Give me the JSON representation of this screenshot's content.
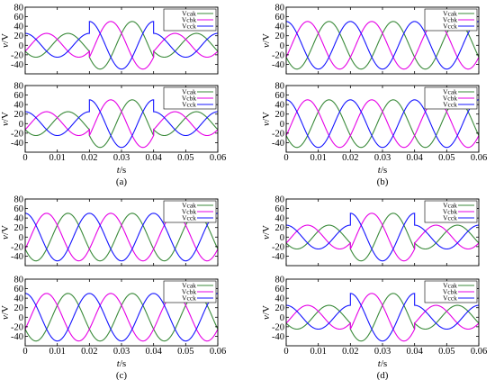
{
  "chart_data": [
    {
      "panel": "(a)",
      "caption": "(a)",
      "xlabel": "t/s",
      "ylabel": "v/V",
      "xlim": [
        0,
        0.06
      ],
      "xticks": [
        "0",
        "0.01",
        "0.02",
        "0.03",
        "0.04",
        "0.05",
        "0.06"
      ],
      "subplots": [
        {
          "type": "line",
          "ylim": [
            -60,
            80
          ],
          "yticks": [
            "-40",
            "-20",
            "0",
            "20",
            "40",
            "60",
            "80"
          ],
          "legend": {
            "position": "top-right",
            "entries": [
              "Vcak",
              "Vcbk",
              "Vcck"
            ]
          },
          "segments": [
            {
              "x_start": 0.0,
              "x_end": 0.02,
              "amplitude": 25,
              "phases_deg": [
                -150,
                -30,
                90
              ]
            },
            {
              "x_start": 0.02,
              "x_end": 0.04,
              "amplitude": 50,
              "phases_deg": [
                -150,
                -30,
                90
              ]
            },
            {
              "x_start": 0.04,
              "x_end": 0.06,
              "amplitude": 25,
              "phases_deg": [
                -150,
                -30,
                90
              ]
            }
          ]
        },
        {
          "type": "line",
          "ylim": [
            -60,
            80
          ],
          "yticks": [
            "-40",
            "-20",
            "0",
            "20",
            "40",
            "60",
            "80"
          ],
          "legend": {
            "position": "top-right",
            "entries": [
              "Vcak",
              "Vcbk",
              "Vcck"
            ]
          },
          "segments": [
            {
              "x_start": 0.0,
              "x_end": 0.02,
              "amplitude": 25,
              "phases_deg": [
                -150,
                -30,
                90
              ]
            },
            {
              "x_start": 0.02,
              "x_end": 0.04,
              "amplitude": 50,
              "phases_deg": [
                -150,
                -30,
                90
              ]
            },
            {
              "x_start": 0.04,
              "x_end": 0.06,
              "amplitude": 25,
              "phases_deg": [
                -150,
                -30,
                90
              ]
            }
          ]
        }
      ]
    },
    {
      "panel": "(b)",
      "caption": "(b)",
      "xlabel": "t/s",
      "ylabel": "v/V",
      "xlim": [
        0,
        0.06
      ],
      "xticks": [
        "0",
        "0.01",
        "0.02",
        "0.03",
        "0.04",
        "0.05",
        "0.06"
      ],
      "subplots": [
        {
          "type": "line",
          "ylim": [
            -60,
            80
          ],
          "yticks": [
            "-40",
            "-20",
            "0",
            "20",
            "40",
            "60",
            "80"
          ],
          "legend": {
            "position": "top-right",
            "entries": [
              "Vcak",
              "Vcbk",
              "Vcck"
            ]
          },
          "segments": [
            {
              "x_start": 0.0,
              "x_end": 0.02,
              "amplitude": 50,
              "phases_deg": [
                -150,
                -30,
                90
              ]
            },
            {
              "x_start": 0.02,
              "x_end": 0.04,
              "amplitude": 50,
              "phases_deg": [
                -150,
                -30,
                90
              ]
            },
            {
              "x_start": 0.04,
              "x_end": 0.06,
              "amplitude": 50,
              "phases_deg": [
                -150,
                -30,
                90
              ]
            }
          ]
        },
        {
          "type": "line",
          "ylim": [
            -60,
            80
          ],
          "yticks": [
            "-40",
            "-20",
            "0",
            "20",
            "40",
            "60",
            "80"
          ],
          "legend": {
            "position": "top-right",
            "entries": [
              "Vcak",
              "Vcbk",
              "Vcck"
            ]
          },
          "segments": [
            {
              "x_start": 0.0,
              "x_end": 0.02,
              "amplitude": 50,
              "phases_deg": [
                -150,
                -30,
                90
              ]
            },
            {
              "x_start": 0.02,
              "x_end": 0.04,
              "amplitude": 50,
              "phases_deg": [
                -150,
                -30,
                90
              ]
            },
            {
              "x_start": 0.04,
              "x_end": 0.06,
              "amplitude": 50,
              "phases_deg": [
                -150,
                -30,
                90
              ]
            }
          ]
        }
      ]
    },
    {
      "panel": "(c)",
      "caption": "(c)",
      "xlabel": "t/s",
      "ylabel": "v/V",
      "xlim": [
        0,
        0.06
      ],
      "xticks": [
        "0",
        "0.01",
        "0.02",
        "0.03",
        "0.04",
        "0.05",
        "0.06"
      ],
      "subplots": [
        {
          "type": "line",
          "ylim": [
            -60,
            80
          ],
          "yticks": [
            "-40",
            "-20",
            "0",
            "20",
            "40",
            "60",
            "80"
          ],
          "legend": {
            "position": "top-right",
            "entries": [
              "Vcak",
              "Vcbk",
              "Vcck"
            ]
          },
          "segments": [
            {
              "x_start": 0.0,
              "x_end": 0.06,
              "amplitude": 50,
              "phases_deg": [
                -150,
                -30,
                90
              ]
            }
          ]
        },
        {
          "type": "line",
          "ylim": [
            -60,
            80
          ],
          "yticks": [
            "-40",
            "-20",
            "0",
            "20",
            "40",
            "60",
            "80"
          ],
          "legend": {
            "position": "top-right",
            "entries": [
              "Vcak",
              "Vcbk",
              "Vcck"
            ]
          },
          "segments": [
            {
              "x_start": 0.0,
              "x_end": 0.06,
              "amplitude": 50,
              "phases_deg": [
                -150,
                -30,
                90
              ]
            }
          ]
        }
      ]
    },
    {
      "panel": "(d)",
      "caption": "(d)",
      "xlabel": "t/s",
      "ylabel": "v/V",
      "xlim": [
        0,
        0.06
      ],
      "xticks": [
        "0",
        "0.01",
        "0.02",
        "0.03",
        "0.04",
        "0.05",
        "0.06"
      ],
      "subplots": [
        {
          "type": "line",
          "ylim": [
            -60,
            80
          ],
          "yticks": [
            "-40",
            "-20",
            "0",
            "20",
            "40",
            "60",
            "80"
          ],
          "legend": {
            "position": "top-right",
            "entries": [
              "Vcak",
              "Vcbk",
              "Vcck"
            ]
          },
          "segments": [
            {
              "x_start": 0.0,
              "x_end": 0.02,
              "amplitude": 25,
              "phases_deg": [
                -150,
                -30,
                90
              ]
            },
            {
              "x_start": 0.02,
              "x_end": 0.04,
              "amplitude": 50,
              "phases_deg": [
                -150,
                -30,
                90
              ]
            },
            {
              "x_start": 0.04,
              "x_end": 0.06,
              "amplitude": 25,
              "phases_deg": [
                -150,
                -30,
                90
              ]
            }
          ]
        },
        {
          "type": "line",
          "ylim": [
            -60,
            80
          ],
          "yticks": [
            "-40",
            "-20",
            "0",
            "20",
            "40",
            "60",
            "80"
          ],
          "legend": {
            "position": "top-right",
            "entries": [
              "Vcak",
              "Vcbk",
              "Vcck"
            ]
          },
          "segments": [
            {
              "x_start": 0.0,
              "x_end": 0.02,
              "amplitude": 25,
              "phases_deg": [
                -150,
                -30,
                90
              ]
            },
            {
              "x_start": 0.02,
              "x_end": 0.04,
              "amplitude": 50,
              "phases_deg": [
                -150,
                -30,
                90
              ]
            },
            {
              "x_start": 0.04,
              "x_end": 0.06,
              "amplitude": 25,
              "phases_deg": [
                -150,
                -30,
                90
              ]
            }
          ]
        }
      ]
    }
  ],
  "series_colors": [
    "#3a8a3a",
    "#e600e6",
    "#1414ff"
  ],
  "frequency_hz": 50
}
